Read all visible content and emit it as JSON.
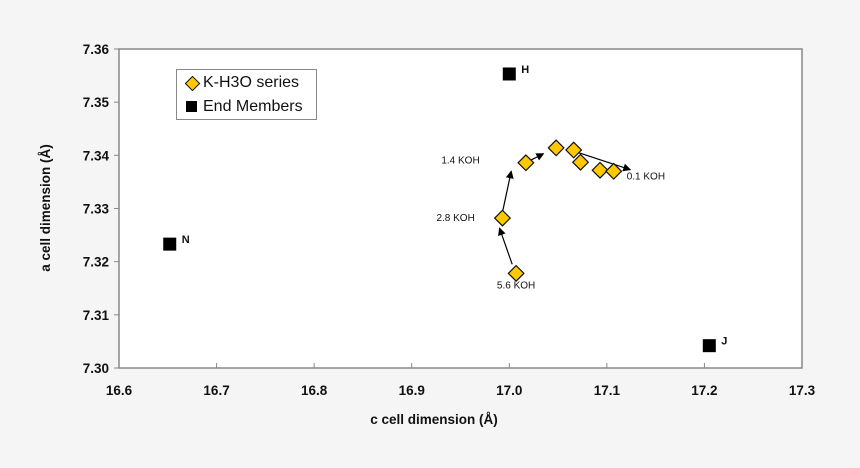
{
  "chart_data": {
    "type": "scatter",
    "title": "",
    "xlabel": "c cell dimension (Å)",
    "ylabel": "a cell dimension (Å)",
    "xlim": [
      16.6,
      17.3
    ],
    "ylim": [
      7.3,
      7.36
    ],
    "x_ticks": [
      "16.6",
      "16.7",
      "16.8",
      "16.9",
      "17.0",
      "17.1",
      "17.2",
      "17.3"
    ],
    "y_ticks": [
      "7.30",
      "7.31",
      "7.32",
      "7.33",
      "7.34",
      "7.35",
      "7.36"
    ],
    "grid": false,
    "legend_position": "upper-left",
    "series": [
      {
        "name": "K-H3O series",
        "marker": "diamond",
        "color": "#ffc800",
        "points": [
          {
            "x": 17.007,
            "y": 7.3178
          },
          {
            "x": 16.993,
            "y": 7.3282
          },
          {
            "x": 17.017,
            "y": 7.3386
          },
          {
            "x": 17.048,
            "y": 7.3414
          },
          {
            "x": 17.066,
            "y": 7.341
          },
          {
            "x": 17.073,
            "y": 7.3387
          },
          {
            "x": 17.093,
            "y": 7.3372
          },
          {
            "x": 17.107,
            "y": 7.337
          }
        ]
      },
      {
        "name": "End Members",
        "marker": "square",
        "color": "#000000",
        "points": [
          {
            "x": 17.0,
            "y": 7.3553,
            "label": "H"
          },
          {
            "x": 16.652,
            "y": 7.3233,
            "label": "N"
          },
          {
            "x": 17.205,
            "y": 7.3042,
            "label": "J"
          }
        ]
      }
    ],
    "annotations": [
      {
        "text": "5.6 KOH",
        "x": 17.007,
        "y": 7.3155
      },
      {
        "text": "2.8 KOH",
        "x": 16.945,
        "y": 7.3282
      },
      {
        "text": "1.4 KOH",
        "x": 16.95,
        "y": 7.339
      },
      {
        "text": "0.1 KOH",
        "x": 17.14,
        "y": 7.336
      }
    ],
    "arrows": [
      {
        "from": [
          17.003,
          7.3195
        ],
        "to": [
          16.99,
          7.3263
        ]
      },
      {
        "from": [
          16.993,
          7.3293
        ],
        "to": [
          17.002,
          7.337
        ]
      },
      {
        "from": [
          17.02,
          7.3389
        ],
        "to": [
          17.035,
          7.3403
        ]
      },
      {
        "from": [
          17.066,
          7.3408
        ],
        "to": [
          17.124,
          7.3373
        ]
      }
    ]
  },
  "legend": {
    "items": [
      {
        "label": "K-H3O series",
        "symbol": "diamond"
      },
      {
        "label": "End Members",
        "symbol": "square"
      }
    ]
  }
}
